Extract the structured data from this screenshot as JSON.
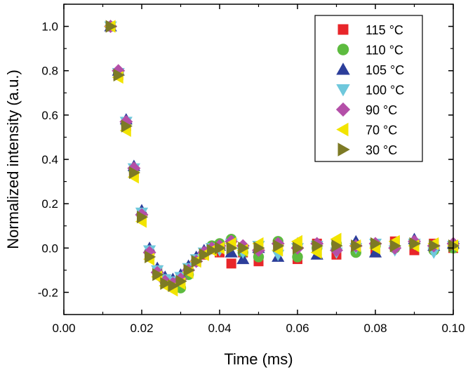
{
  "chart_data": {
    "type": "scatter",
    "xlabel": "Time (ms)",
    "ylabel": "Normalized intensity (a.u.)",
    "xlim": [
      0.0,
      0.1
    ],
    "ylim": [
      -0.3,
      1.1
    ],
    "x_ticks": [
      0.0,
      0.02,
      0.04,
      0.06,
      0.08,
      0.1
    ],
    "x_tick_labels": [
      "0.00",
      "0.02",
      "0.04",
      "0.06",
      "0.08",
      "0.10"
    ],
    "y_ticks": [
      -0.2,
      0.0,
      0.2,
      0.4,
      0.6,
      0.8,
      1.0
    ],
    "y_tick_labels": [
      "-0.2",
      "0.0",
      "0.2",
      "0.4",
      "0.6",
      "0.8",
      "1.0"
    ],
    "legend_position": "top-right",
    "grid": false,
    "series": [
      {
        "name": "115 °C",
        "marker": "square",
        "color": "#e8262a",
        "x": [
          0.012,
          0.014,
          0.016,
          0.018,
          0.02,
          0.022,
          0.024,
          0.026,
          0.028,
          0.03,
          0.032,
          0.034,
          0.036,
          0.038,
          0.04,
          0.043,
          0.046,
          0.05,
          0.055,
          0.06,
          0.065,
          0.07,
          0.075,
          0.08,
          0.085,
          0.09,
          0.095,
          0.1
        ],
        "y": [
          1.0,
          0.78,
          0.55,
          0.34,
          0.14,
          -0.03,
          -0.1,
          -0.14,
          -0.16,
          -0.14,
          -0.1,
          -0.06,
          -0.03,
          0.0,
          -0.02,
          -0.07,
          -0.02,
          -0.06,
          0.01,
          -0.05,
          0.02,
          -0.03,
          0.01,
          -0.02,
          0.03,
          -0.01,
          0.02,
          0.0
        ]
      },
      {
        "name": "110 °C",
        "marker": "circle",
        "color": "#5dbb3f",
        "x": [
          0.012,
          0.014,
          0.016,
          0.018,
          0.02,
          0.022,
          0.024,
          0.026,
          0.028,
          0.03,
          0.032,
          0.034,
          0.036,
          0.038,
          0.04,
          0.043,
          0.046,
          0.05,
          0.055,
          0.06,
          0.065,
          0.07,
          0.075,
          0.08,
          0.085,
          0.09,
          0.095,
          0.1
        ],
        "y": [
          1.0,
          0.79,
          0.56,
          0.35,
          0.15,
          -0.02,
          -0.11,
          -0.15,
          -0.17,
          -0.18,
          -0.12,
          -0.06,
          -0.02,
          0.01,
          0.02,
          0.04,
          -0.02,
          -0.04,
          0.03,
          -0.04,
          0.0,
          0.02,
          -0.02,
          0.01,
          0.0,
          0.02,
          -0.01,
          0.0
        ]
      },
      {
        "name": "105 °C",
        "marker": "triangle-up",
        "color": "#2c3e9a",
        "x": [
          0.012,
          0.014,
          0.016,
          0.018,
          0.02,
          0.022,
          0.024,
          0.026,
          0.028,
          0.03,
          0.032,
          0.034,
          0.036,
          0.038,
          0.04,
          0.043,
          0.046,
          0.05,
          0.055,
          0.06,
          0.065,
          0.07,
          0.075,
          0.08,
          0.085,
          0.09,
          0.095,
          0.1
        ],
        "y": [
          1.0,
          0.8,
          0.58,
          0.37,
          0.17,
          0.0,
          -0.09,
          -0.13,
          -0.14,
          -0.12,
          -0.08,
          -0.04,
          -0.01,
          0.0,
          0.01,
          -0.02,
          -0.05,
          0.0,
          -0.04,
          0.02,
          -0.03,
          0.01,
          0.03,
          -0.02,
          0.02,
          0.04,
          0.01,
          0.02
        ]
      },
      {
        "name": "100 °C",
        "marker": "triangle-down",
        "color": "#6fc8dc",
        "x": [
          0.012,
          0.014,
          0.016,
          0.018,
          0.02,
          0.022,
          0.024,
          0.026,
          0.028,
          0.03,
          0.032,
          0.034,
          0.036,
          0.038,
          0.04,
          0.043,
          0.046,
          0.05,
          0.055,
          0.06,
          0.065,
          0.07,
          0.075,
          0.08,
          0.085,
          0.09,
          0.095,
          0.1
        ],
        "y": [
          1.0,
          0.79,
          0.57,
          0.36,
          0.16,
          -0.01,
          -0.1,
          -0.14,
          -0.15,
          -0.13,
          -0.09,
          -0.05,
          -0.02,
          0.0,
          -0.01,
          0.02,
          -0.02,
          0.01,
          -0.03,
          0.0,
          0.01,
          -0.02,
          0.0,
          0.02,
          -0.01,
          0.02,
          -0.02,
          0.01
        ]
      },
      {
        "name": "90 °C",
        "marker": "diamond",
        "color": "#b44fa8",
        "x": [
          0.012,
          0.014,
          0.016,
          0.018,
          0.02,
          0.022,
          0.024,
          0.026,
          0.028,
          0.03,
          0.032,
          0.034,
          0.036,
          0.038,
          0.04,
          0.043,
          0.046,
          0.05,
          0.055,
          0.06,
          0.065,
          0.07,
          0.075,
          0.08,
          0.085,
          0.09,
          0.095,
          0.1
        ],
        "y": [
          1.0,
          0.8,
          0.57,
          0.36,
          0.15,
          -0.02,
          -0.11,
          -0.15,
          -0.16,
          -0.14,
          -0.1,
          -0.06,
          -0.02,
          0.0,
          0.01,
          0.03,
          0.01,
          -0.01,
          0.02,
          0.0,
          0.02,
          -0.01,
          0.01,
          0.02,
          0.0,
          0.03,
          0.01,
          0.02
        ]
      },
      {
        "name": "70 °C",
        "marker": "triangle-left",
        "color": "#f2e400",
        "x": [
          0.012,
          0.014,
          0.016,
          0.018,
          0.02,
          0.022,
          0.024,
          0.026,
          0.028,
          0.03,
          0.032,
          0.034,
          0.036,
          0.038,
          0.04,
          0.043,
          0.046,
          0.05,
          0.055,
          0.06,
          0.065,
          0.07,
          0.075,
          0.08,
          0.085,
          0.09,
          0.095,
          0.1
        ],
        "y": [
          1.0,
          0.77,
          0.53,
          0.32,
          0.12,
          -0.05,
          -0.13,
          -0.17,
          -0.19,
          -0.16,
          -0.11,
          -0.06,
          -0.03,
          -0.01,
          0.0,
          0.02,
          -0.01,
          0.02,
          -0.01,
          0.03,
          -0.02,
          0.04,
          0.01,
          0.0,
          0.03,
          0.01,
          0.02,
          0.01
        ]
      },
      {
        "name": "30 °C",
        "marker": "triangle-right",
        "color": "#7d7a25",
        "x": [
          0.012,
          0.014,
          0.016,
          0.018,
          0.02,
          0.022,
          0.024,
          0.026,
          0.028,
          0.03,
          0.032,
          0.034,
          0.036,
          0.038,
          0.04,
          0.043,
          0.046,
          0.05,
          0.055,
          0.06,
          0.065,
          0.07,
          0.075,
          0.08,
          0.085,
          0.09,
          0.095,
          0.1
        ],
        "y": [
          1.0,
          0.78,
          0.55,
          0.34,
          0.14,
          -0.04,
          -0.12,
          -0.16,
          -0.17,
          -0.15,
          -0.1,
          -0.06,
          -0.03,
          -0.01,
          0.0,
          0.0,
          0.0,
          0.0,
          0.01,
          0.0,
          0.01,
          0.01,
          0.01,
          0.02,
          0.01,
          0.02,
          0.01,
          0.01
        ]
      }
    ]
  }
}
